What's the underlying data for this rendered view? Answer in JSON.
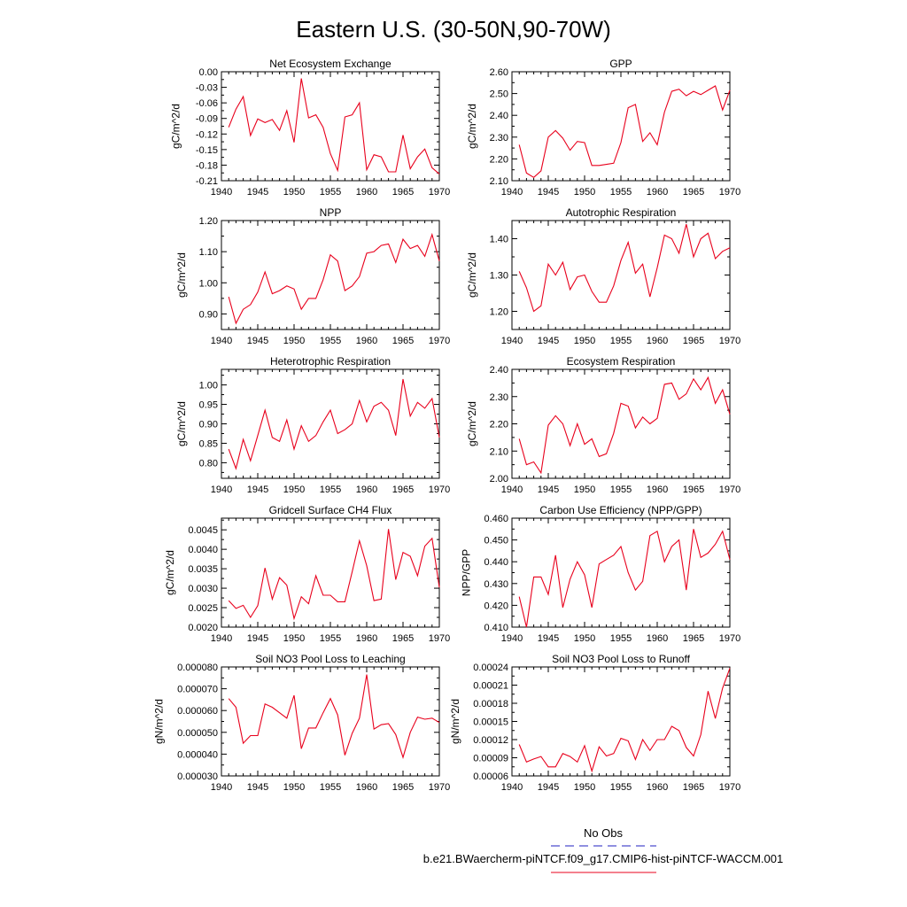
{
  "figure": {
    "title": "Eastern U.S. (30-50N,90-70W)",
    "series_color": "#e8001c",
    "legend": {
      "entries": [
        {
          "label": "No Obs",
          "color": "#2020c0",
          "style": "dashed"
        },
        {
          "label": "b.e21.BWaercherm-piNTCF.f09_g17.CMIP6-hist-piNTCF-WACCM.001",
          "color": "#e8001c",
          "style": "solid"
        }
      ]
    }
  },
  "chart_data": [
    {
      "type": "line",
      "title": "Net Ecosystem Exchange",
      "ylabel": "gC/m^2/d",
      "xlim": [
        1940,
        1970
      ],
      "ylim": [
        -0.21,
        0.0
      ],
      "xticks": [
        1940,
        1945,
        1950,
        1955,
        1960,
        1965,
        1970
      ],
      "yticks": [
        "-0.21",
        "-0.18",
        "-0.15",
        "-0.12",
        "-0.09",
        "-0.06",
        "-0.03",
        "0.00"
      ],
      "ytick_values": [
        -0.21,
        -0.18,
        -0.15,
        -0.12,
        -0.09,
        -0.06,
        -0.03,
        0.0
      ],
      "x": [
        1941,
        1942,
        1943,
        1944,
        1945,
        1946,
        1947,
        1948,
        1949,
        1950,
        1951,
        1952,
        1953,
        1954,
        1955,
        1956,
        1957,
        1958,
        1959,
        1960,
        1961,
        1962,
        1963,
        1964,
        1965,
        1966,
        1967,
        1968,
        1969,
        1970
      ],
      "y": [
        -0.107,
        -0.072,
        -0.048,
        -0.123,
        -0.091,
        -0.098,
        -0.092,
        -0.113,
        -0.075,
        -0.136,
        -0.013,
        -0.089,
        -0.083,
        -0.107,
        -0.158,
        -0.19,
        -0.087,
        -0.083,
        -0.06,
        -0.189,
        -0.16,
        -0.164,
        -0.193,
        -0.193,
        -0.122,
        -0.187,
        -0.164,
        -0.149,
        -0.185,
        -0.197
      ]
    },
    {
      "type": "line",
      "title": "GPP",
      "ylabel": "gC/m^2/d",
      "xlim": [
        1940,
        1970
      ],
      "ylim": [
        2.1,
        2.6
      ],
      "xticks": [
        1940,
        1945,
        1950,
        1955,
        1960,
        1965,
        1970
      ],
      "yticks": [
        "2.10",
        "2.20",
        "2.30",
        "2.40",
        "2.50",
        "2.60"
      ],
      "ytick_values": [
        2.1,
        2.2,
        2.3,
        2.4,
        2.5,
        2.6
      ],
      "x": [
        1941,
        1942,
        1943,
        1944,
        1945,
        1946,
        1947,
        1948,
        1949,
        1950,
        1951,
        1952,
        1953,
        1954,
        1955,
        1956,
        1957,
        1958,
        1959,
        1960,
        1961,
        1962,
        1963,
        1964,
        1965,
        1966,
        1967,
        1968,
        1969,
        1970
      ],
      "y": [
        2.265,
        2.135,
        2.115,
        2.145,
        2.3,
        2.33,
        2.295,
        2.24,
        2.28,
        2.275,
        2.17,
        2.17,
        2.175,
        2.18,
        2.275,
        2.435,
        2.45,
        2.28,
        2.32,
        2.265,
        2.415,
        2.51,
        2.52,
        2.49,
        2.51,
        2.495,
        2.515,
        2.535,
        2.425,
        2.515
      ]
    },
    {
      "type": "line",
      "title": "NPP",
      "ylabel": "gC/m^2/d",
      "xlim": [
        1940,
        1970
      ],
      "ylim": [
        0.85,
        1.2
      ],
      "xticks": [
        1940,
        1945,
        1950,
        1955,
        1960,
        1965,
        1970
      ],
      "yticks": [
        "0.90",
        "1.00",
        "1.10",
        "1.20"
      ],
      "ytick_values": [
        0.9,
        1.0,
        1.1,
        1.2
      ],
      "x": [
        1941,
        1942,
        1943,
        1944,
        1945,
        1946,
        1947,
        1948,
        1949,
        1950,
        1951,
        1952,
        1953,
        1954,
        1955,
        1956,
        1957,
        1958,
        1959,
        1960,
        1961,
        1962,
        1963,
        1964,
        1965,
        1966,
        1967,
        1968,
        1969,
        1970
      ],
      "y": [
        0.955,
        0.87,
        0.915,
        0.93,
        0.97,
        1.035,
        0.965,
        0.975,
        0.99,
        0.98,
        0.915,
        0.95,
        0.95,
        1.01,
        1.09,
        1.07,
        0.975,
        0.99,
        1.02,
        1.095,
        1.1,
        1.12,
        1.125,
        1.065,
        1.14,
        1.11,
        1.12,
        1.085,
        1.155,
        1.07
      ]
    },
    {
      "type": "line",
      "title": "Autotrophic Respiration",
      "ylabel": "gC/m^2/d",
      "xlim": [
        1940,
        1970
      ],
      "ylim": [
        1.15,
        1.45
      ],
      "xticks": [
        1940,
        1945,
        1950,
        1955,
        1960,
        1965,
        1970
      ],
      "yticks": [
        "1.20",
        "1.30",
        "1.40"
      ],
      "ytick_values": [
        1.2,
        1.3,
        1.4
      ],
      "x": [
        1941,
        1942,
        1943,
        1944,
        1945,
        1946,
        1947,
        1948,
        1949,
        1950,
        1951,
        1952,
        1953,
        1954,
        1955,
        1956,
        1957,
        1958,
        1959,
        1960,
        1961,
        1962,
        1963,
        1964,
        1965,
        1966,
        1967,
        1968,
        1969,
        1970
      ],
      "y": [
        1.31,
        1.265,
        1.2,
        1.215,
        1.33,
        1.3,
        1.335,
        1.26,
        1.295,
        1.3,
        1.255,
        1.225,
        1.225,
        1.27,
        1.34,
        1.39,
        1.305,
        1.33,
        1.24,
        1.32,
        1.41,
        1.4,
        1.36,
        1.44,
        1.35,
        1.4,
        1.415,
        1.345,
        1.365,
        1.375
      ]
    },
    {
      "type": "line",
      "title": "Heterotrophic Respiration",
      "ylabel": "gC/m^2/d",
      "xlim": [
        1940,
        1970
      ],
      "ylim": [
        0.76,
        1.04
      ],
      "xticks": [
        1940,
        1945,
        1950,
        1955,
        1960,
        1965,
        1970
      ],
      "yticks": [
        "0.80",
        "0.85",
        "0.90",
        "0.95",
        "1.00"
      ],
      "ytick_values": [
        0.8,
        0.85,
        0.9,
        0.95,
        1.0
      ],
      "x": [
        1941,
        1942,
        1943,
        1944,
        1945,
        1946,
        1947,
        1948,
        1949,
        1950,
        1951,
        1952,
        1953,
        1954,
        1955,
        1956,
        1957,
        1958,
        1959,
        1960,
        1961,
        1962,
        1963,
        1964,
        1965,
        1966,
        1967,
        1968,
        1969,
        1970
      ],
      "y": [
        0.835,
        0.785,
        0.86,
        0.805,
        0.87,
        0.935,
        0.865,
        0.855,
        0.91,
        0.835,
        0.895,
        0.855,
        0.87,
        0.905,
        0.935,
        0.875,
        0.885,
        0.9,
        0.96,
        0.905,
        0.945,
        0.955,
        0.935,
        0.87,
        1.015,
        0.92,
        0.955,
        0.94,
        0.965,
        0.865
      ]
    },
    {
      "type": "line",
      "title": "Ecosystem Respiration",
      "ylabel": "gC/m^2/d",
      "xlim": [
        1940,
        1970
      ],
      "ylim": [
        2.0,
        2.4
      ],
      "xticks": [
        1940,
        1945,
        1950,
        1955,
        1960,
        1965,
        1970
      ],
      "yticks": [
        "2.00",
        "2.10",
        "2.20",
        "2.30",
        "2.40"
      ],
      "ytick_values": [
        2.0,
        2.1,
        2.2,
        2.3,
        2.4
      ],
      "x": [
        1941,
        1942,
        1943,
        1944,
        1945,
        1946,
        1947,
        1948,
        1949,
        1950,
        1951,
        1952,
        1953,
        1954,
        1955,
        1956,
        1957,
        1958,
        1959,
        1960,
        1961,
        1962,
        1963,
        1964,
        1965,
        1966,
        1967,
        1968,
        1969,
        1970
      ],
      "y": [
        2.145,
        2.05,
        2.06,
        2.02,
        2.195,
        2.23,
        2.2,
        2.12,
        2.2,
        2.125,
        2.145,
        2.08,
        2.09,
        2.165,
        2.275,
        2.265,
        2.185,
        2.225,
        2.2,
        2.22,
        2.345,
        2.35,
        2.29,
        2.31,
        2.365,
        2.325,
        2.37,
        2.275,
        2.325,
        2.235
      ]
    },
    {
      "type": "line",
      "title": "Gridcell Surface CH4 Flux",
      "ylabel": "gC/m^2/d",
      "xlim": [
        1940,
        1970
      ],
      "ylim": [
        0.002,
        0.0048
      ],
      "xticks": [
        1940,
        1945,
        1950,
        1955,
        1960,
        1965,
        1970
      ],
      "yticks": [
        "0.0020",
        "0.0025",
        "0.0030",
        "0.0035",
        "0.0040",
        "0.0045"
      ],
      "ytick_values": [
        0.002,
        0.0025,
        0.003,
        0.0035,
        0.004,
        0.0045
      ],
      "x": [
        1941,
        1942,
        1943,
        1944,
        1945,
        1946,
        1947,
        1948,
        1949,
        1950,
        1951,
        1952,
        1953,
        1954,
        1955,
        1956,
        1957,
        1958,
        1959,
        1960,
        1961,
        1962,
        1963,
        1964,
        1965,
        1966,
        1967,
        1968,
        1969,
        1970
      ],
      "y": [
        0.00268,
        0.00248,
        0.00256,
        0.00225,
        0.00255,
        0.00352,
        0.00272,
        0.00327,
        0.00308,
        0.00222,
        0.00278,
        0.0026,
        0.00332,
        0.00282,
        0.00282,
        0.00265,
        0.00265,
        0.00342,
        0.00422,
        0.00358,
        0.00268,
        0.00272,
        0.00452,
        0.00322,
        0.00392,
        0.00382,
        0.00332,
        0.00408,
        0.00428,
        0.00302
      ]
    },
    {
      "type": "line",
      "title": "Carbon Use Efficiency (NPP/GPP)",
      "ylabel": "NPP/GPP",
      "xlim": [
        1940,
        1970
      ],
      "ylim": [
        0.41,
        0.46
      ],
      "xticks": [
        1940,
        1945,
        1950,
        1955,
        1960,
        1965,
        1970
      ],
      "yticks": [
        "0.410",
        "0.420",
        "0.430",
        "0.440",
        "0.450",
        "0.460"
      ],
      "ytick_values": [
        0.41,
        0.42,
        0.43,
        0.44,
        0.45,
        0.46
      ],
      "x": [
        1941,
        1942,
        1943,
        1944,
        1945,
        1946,
        1947,
        1948,
        1949,
        1950,
        1951,
        1952,
        1953,
        1954,
        1955,
        1956,
        1957,
        1958,
        1959,
        1960,
        1961,
        1962,
        1963,
        1964,
        1965,
        1966,
        1967,
        1968,
        1969,
        1970
      ],
      "y": [
        0.424,
        0.41,
        0.433,
        0.433,
        0.425,
        0.443,
        0.419,
        0.432,
        0.44,
        0.434,
        0.419,
        0.439,
        0.441,
        0.443,
        0.447,
        0.435,
        0.427,
        0.431,
        0.452,
        0.454,
        0.44,
        0.447,
        0.45,
        0.427,
        0.455,
        0.442,
        0.444,
        0.448,
        0.454,
        0.441
      ]
    },
    {
      "type": "line",
      "title": "Soil NO3 Pool Loss to Leaching",
      "ylabel": "gN/m^2/d",
      "xlim": [
        1940,
        1970
      ],
      "ylim": [
        3e-05,
        8e-05
      ],
      "xticks": [
        1940,
        1945,
        1950,
        1955,
        1960,
        1965,
        1970
      ],
      "yticks": [
        "0.000030",
        "0.000040",
        "0.000050",
        "0.000060",
        "0.000070",
        "0.000080"
      ],
      "ytick_values": [
        3e-05,
        4e-05,
        5e-05,
        6e-05,
        7e-05,
        8e-05
      ],
      "x": [
        1941,
        1942,
        1943,
        1944,
        1945,
        1946,
        1947,
        1948,
        1949,
        1950,
        1951,
        1952,
        1953,
        1954,
        1955,
        1956,
        1957,
        1958,
        1959,
        1960,
        1961,
        1962,
        1963,
        1964,
        1965,
        1966,
        1967,
        1968,
        1969,
        1970
      ],
      "y": [
        6.55e-05,
        6.15e-05,
        4.5e-05,
        4.85e-05,
        4.85e-05,
        6.3e-05,
        6.15e-05,
        5.9e-05,
        5.65e-05,
        6.7e-05,
        4.25e-05,
        5.2e-05,
        5.2e-05,
        5.9e-05,
        6.55e-05,
        5.8e-05,
        3.95e-05,
        4.95e-05,
        5.65e-05,
        7.65e-05,
        5.15e-05,
        5.35e-05,
        5.4e-05,
        4.9e-05,
        3.85e-05,
        5e-05,
        5.7e-05,
        5.6e-05,
        5.65e-05,
        5.45e-05
      ]
    },
    {
      "type": "line",
      "title": "Soil NO3 Pool Loss to Runoff",
      "ylabel": "gN/m^2/d",
      "xlim": [
        1940,
        1970
      ],
      "ylim": [
        6e-05,
        0.00024
      ],
      "xticks": [
        1940,
        1945,
        1950,
        1955,
        1960,
        1965,
        1970
      ],
      "yticks": [
        "0.00006",
        "0.00009",
        "0.00012",
        "0.00015",
        "0.00018",
        "0.00021",
        "0.00024"
      ],
      "ytick_values": [
        6e-05,
        9e-05,
        0.00012,
        0.00015,
        0.00018,
        0.00021,
        0.00024
      ],
      "x": [
        1941,
        1942,
        1943,
        1944,
        1945,
        1946,
        1947,
        1948,
        1949,
        1950,
        1951,
        1952,
        1953,
        1954,
        1955,
        1956,
        1957,
        1958,
        1959,
        1960,
        1961,
        1962,
        1963,
        1964,
        1965,
        1966,
        1967,
        1968,
        1969,
        1970
      ],
      "y": [
        0.000112,
        8.3e-05,
        8.8e-05,
        9.2e-05,
        7.5e-05,
        7.5e-05,
        9.7e-05,
        9.2e-05,
        8.3e-05,
        0.00011,
        6.8e-05,
        0.000108,
        9.3e-05,
        9.7e-05,
        0.000122,
        0.000118,
        8.7e-05,
        0.00012,
        0.000102,
        0.00012,
        0.00012,
        0.000142,
        0.000135,
        0.000107,
        9.3e-05,
        0.000128,
        0.0002,
        0.000155,
        0.000205,
        0.000238
      ]
    }
  ]
}
